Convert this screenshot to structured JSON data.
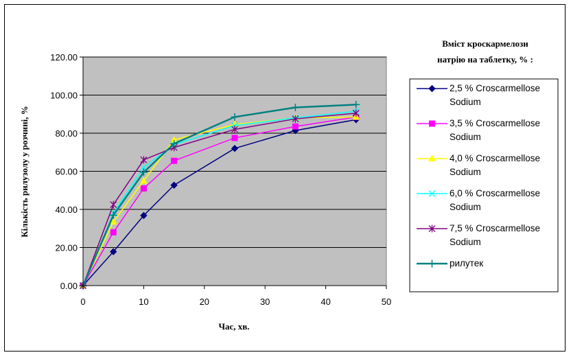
{
  "chart_data": {
    "type": "line",
    "title": "",
    "xlabel": "Час, хв.",
    "ylabel": "Кількість рилузолу у розчині, %",
    "x_ticks": [
      "0",
      "10",
      "20",
      "30",
      "40",
      "50"
    ],
    "y_ticks": [
      "0.00",
      "20.00",
      "40.00",
      "60.00",
      "80.00",
      "100.00",
      "120.00"
    ],
    "xlim": [
      0,
      50
    ],
    "ylim": [
      0,
      120
    ],
    "grid": "horizontal",
    "plot_background": "#c0c0c0",
    "legend_position": "right",
    "legend_title_lines": [
      "Вміст кроскармелози",
      "натрію на таблетку, % :"
    ],
    "x": [
      0,
      5,
      10,
      15,
      25,
      35,
      45
    ],
    "series": [
      {
        "name": "2,5 % Croscarmellose Sodium",
        "label_lines": [
          "2,5 % Croscarmellose",
          "Sodium"
        ],
        "color": "#000080",
        "marker": "diamond",
        "values": [
          0,
          17.8,
          36.8,
          52.7,
          72.0,
          81.4,
          87.1
        ]
      },
      {
        "name": "3,5 % Croscarmellose Sodium",
        "label_lines": [
          "3,5 % Croscarmellose",
          "Sodium"
        ],
        "color": "#ff00ff",
        "marker": "square",
        "values": [
          0,
          28.0,
          51.0,
          65.5,
          77.5,
          83.5,
          88.5
        ]
      },
      {
        "name": "4,0 % Croscarmellose Sodium",
        "label_lines": [
          "4,0 % Croscarmellose",
          "Sodium"
        ],
        "color": "#ffff00",
        "marker": "triangle",
        "values": [
          0,
          33.5,
          55.0,
          76.5,
          84.5,
          88.0,
          88.5
        ]
      },
      {
        "name": "6,0 % Croscarmellose Sodium",
        "label_lines": [
          "6,0 % Croscarmellose",
          "Sodium"
        ],
        "color": "#00ffff",
        "marker": "x",
        "values": [
          0,
          38.0,
          62.0,
          74.0,
          84.0,
          88.0,
          91.5
        ]
      },
      {
        "name": "7,5 % Croscarmellose Sodium",
        "label_lines": [
          "7,5 % Croscarmellose",
          "Sodium"
        ],
        "color": "#800080",
        "marker": "star",
        "values": [
          0,
          42.5,
          66.0,
          72.5,
          82.0,
          87.5,
          90.5
        ]
      },
      {
        "name": "рилутек",
        "label_lines": [
          "рилутек"
        ],
        "color": "#008080",
        "marker": "plus",
        "values": [
          0,
          37.0,
          59.5,
          74.5,
          88.5,
          93.5,
          95.0
        ]
      }
    ]
  }
}
